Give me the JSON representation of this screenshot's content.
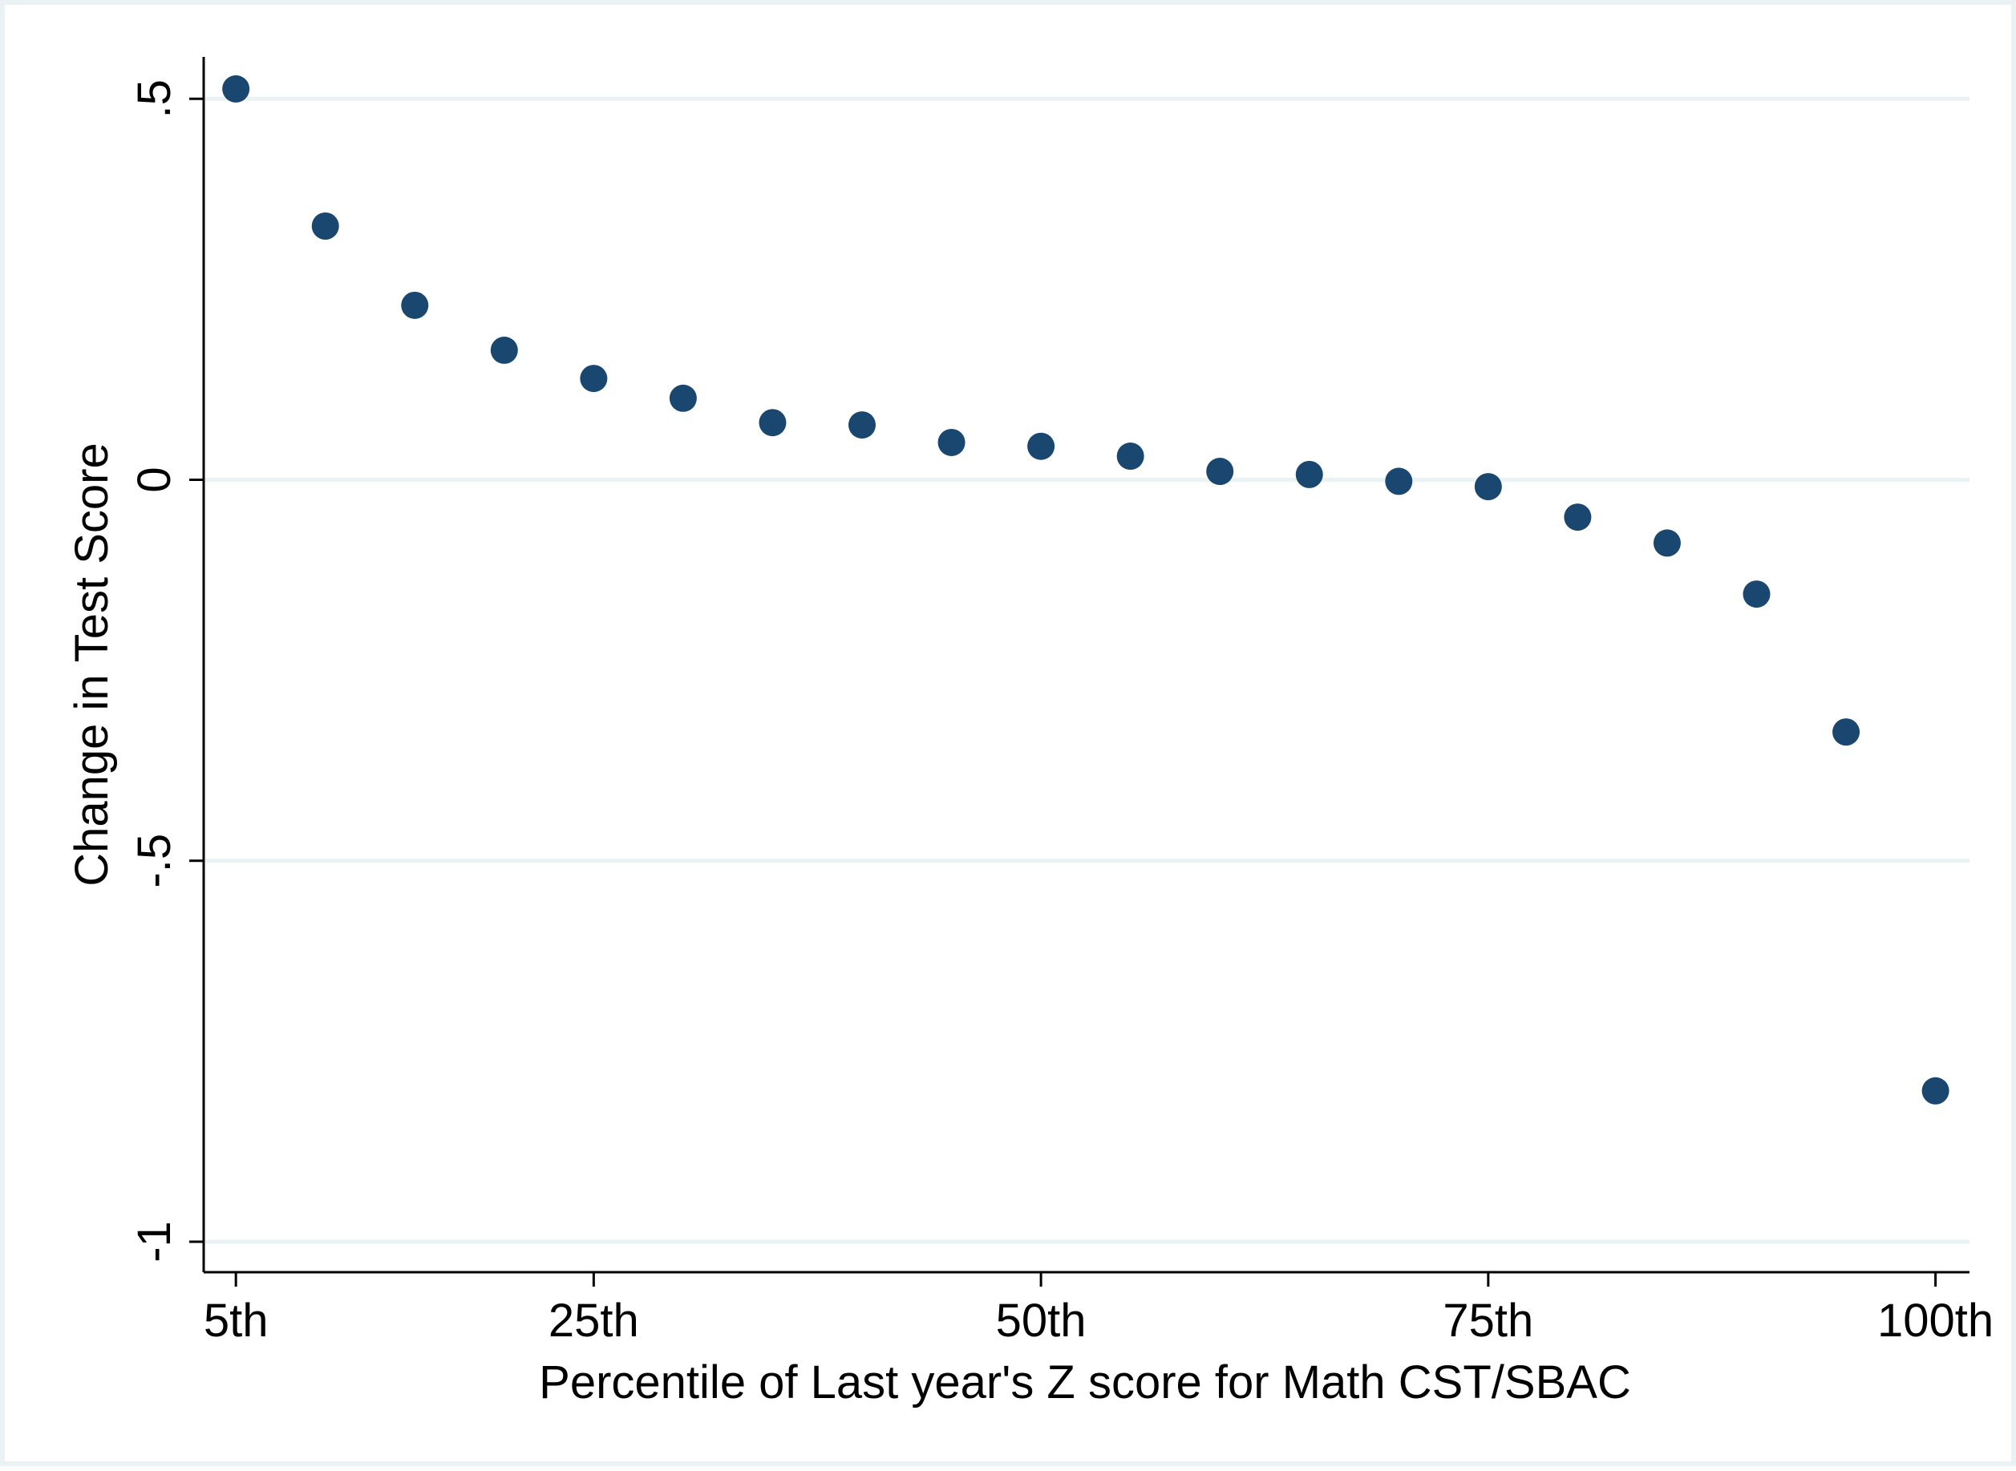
{
  "chart_data": {
    "type": "scatter",
    "title": "",
    "xlabel": "Percentile of Last year's Z score for Math CST/SBAC",
    "ylabel": "Change in Test Score",
    "x_ticks": [
      {
        "value": 5,
        "label": "5th"
      },
      {
        "value": 25,
        "label": "25th"
      },
      {
        "value": 50,
        "label": "50th"
      },
      {
        "value": 75,
        "label": "75th"
      },
      {
        "value": 100,
        "label": "100th"
      }
    ],
    "y_ticks": [
      {
        "value": 0.5,
        "label": ".5"
      },
      {
        "value": 0,
        "label": "0"
      },
      {
        "value": -0.5,
        "label": "-.5"
      },
      {
        "value": -1,
        "label": "-1"
      }
    ],
    "xlim": [
      3.2,
      101.9
    ],
    "ylim": [
      -1.04,
      0.555
    ],
    "grid": "horizontal",
    "marker_color": "#1a476f",
    "gridline_color": "#eaf2f3",
    "points": [
      {
        "x": 5,
        "y": 0.513
      },
      {
        "x": 10,
        "y": 0.333
      },
      {
        "x": 15,
        "y": 0.229
      },
      {
        "x": 20,
        "y": 0.17
      },
      {
        "x": 25,
        "y": 0.133
      },
      {
        "x": 30,
        "y": 0.107
      },
      {
        "x": 35,
        "y": 0.075
      },
      {
        "x": 40,
        "y": 0.072
      },
      {
        "x": 45,
        "y": 0.049
      },
      {
        "x": 50,
        "y": 0.044
      },
      {
        "x": 55,
        "y": 0.031
      },
      {
        "x": 60,
        "y": 0.011
      },
      {
        "x": 65,
        "y": 0.007
      },
      {
        "x": 70,
        "y": -0.002
      },
      {
        "x": 75,
        "y": -0.009
      },
      {
        "x": 80,
        "y": -0.049
      },
      {
        "x": 85,
        "y": -0.083
      },
      {
        "x": 90,
        "y": -0.15
      },
      {
        "x": 95,
        "y": -0.331
      },
      {
        "x": 100,
        "y": -0.802
      }
    ]
  }
}
